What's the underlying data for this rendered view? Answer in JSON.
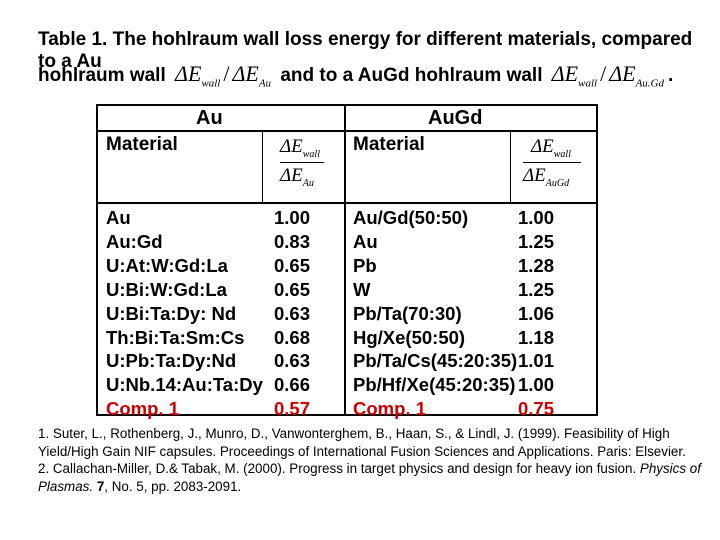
{
  "title": {
    "line1": "Table 1. The hohlraum wall loss energy for different materials, compared to a Au",
    "line2_prefix": "hohlraum wall",
    "line2_mid": "and to a AuGd hohlraum wall",
    "line2_end": ".",
    "delta_symbol": "ΔE",
    "sub_wall": "wall",
    "sub_au": "Au",
    "sub_augd": "Au.Gd"
  },
  "table": {
    "group_left": "Au",
    "group_right": "AuGd",
    "col_material": "Material",
    "ratio_left_top_sub": "wall",
    "ratio_left_bot_sub": "Au",
    "ratio_right_top_sub": "wall",
    "ratio_right_bot_sub": "AuGd",
    "left_rows": [
      {
        "material": "Au",
        "value": "1.00"
      },
      {
        "material": "Au:Gd",
        "value": "0.83"
      },
      {
        "material": "U:At:W:Gd:La",
        "value": "0.65"
      },
      {
        "material": "U:Bi:W:Gd:La",
        "value": "0.65"
      },
      {
        "material": "U:Bi:Ta:Dy: Nd",
        "value": "0.63"
      },
      {
        "material": "Th:Bi:Ta:Sm:Cs",
        "value": "0.68"
      },
      {
        "material": "U:Pb:Ta:Dy:Nd",
        "value": "0.63"
      },
      {
        "material": "U:Nb.14:Au:Ta:Dy",
        "value": "0.66"
      },
      {
        "material": "Comp. 1",
        "value": "0.57"
      }
    ],
    "right_rows": [
      {
        "material": "Au/Gd(50:50)",
        "value": "1.00"
      },
      {
        "material": "Au",
        "value": "1.25"
      },
      {
        "material": "Pb",
        "value": "1.28"
      },
      {
        "material": "W",
        "value": "1.25"
      },
      {
        "material": "Pb/Ta(70:30)",
        "value": "1.06"
      },
      {
        "material": "Hg/Xe(50:50)",
        "value": "1.18"
      },
      {
        "material": "Pb/Ta/Cs(45:20:35)",
        "value": "1.01"
      },
      {
        "material": "Pb/Hf/Xe(45:20:35)",
        "value": "1.00"
      },
      {
        "material": "Comp. 1",
        "value": "0.75"
      }
    ],
    "highlight_color": "#cc0000"
  },
  "references": {
    "ref1": "1. Suter, L., Rothenberg, J., Munro, D., Vanwonterghem, B., Haan, S., & Lindl, J. (1999). Feasibility of High Yield/High Gain NIF capsules. Proceedings of International Fusion Sciences and Applications. Paris: Elsevier.",
    "ref2_prefix": "2. Callachan-Miller, D.& Tabak, M. (2000). Progress in target physics and design for heavy ion fusion.",
    "ref2_journal": "Physics of Plasmas.",
    "ref2_volume": "7",
    "ref2_suffix": ", No. 5, pp. 2083-2091."
  }
}
